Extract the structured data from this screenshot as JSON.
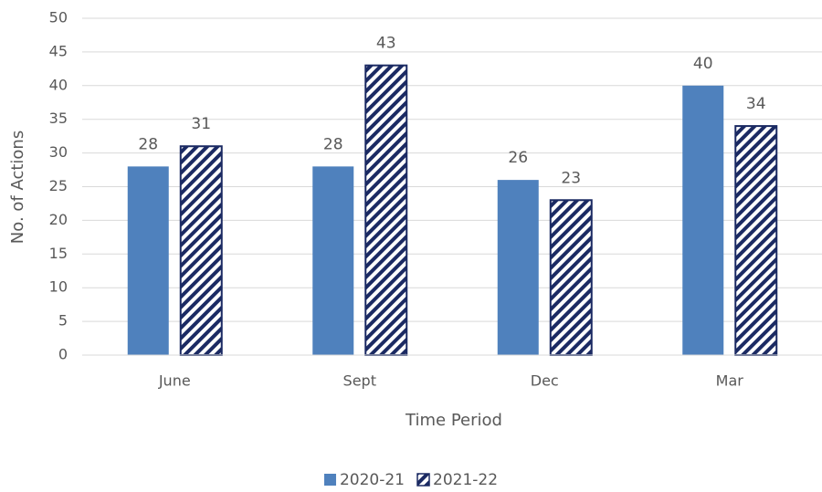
{
  "chart_data": {
    "type": "bar",
    "x_label": "Time Period",
    "y_label": "No. of Actions",
    "categories": [
      "June",
      "Sept",
      "Dec",
      "Mar"
    ],
    "series": [
      {
        "name": "2020-21",
        "color": "#4f81bd",
        "values": [
          28,
          28,
          26,
          40
        ]
      },
      {
        "name": "2021-22",
        "color": "#1b2a63",
        "hatch": true,
        "values": [
          31,
          43,
          23,
          34
        ]
      }
    ],
    "ylim": [
      0,
      50
    ],
    "yticks": [
      0,
      5,
      10,
      15,
      20,
      25,
      30,
      35,
      40,
      45,
      50
    ],
    "grid": true,
    "legend": "bottom",
    "data_labels": true
  }
}
